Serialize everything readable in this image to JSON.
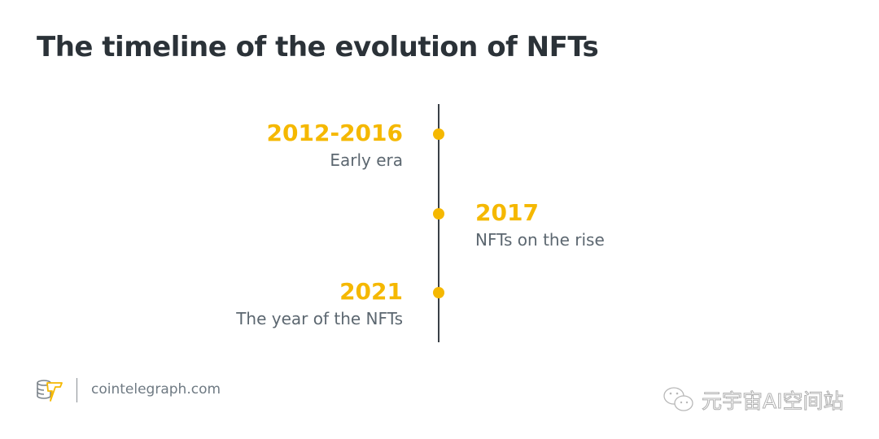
{
  "title": "The timeline of the evolution of NFTs",
  "accent_color": "#f5b800",
  "events": [
    {
      "year": "2012-2016",
      "label": "Early era",
      "side": "left"
    },
    {
      "year": "2017",
      "label": "NFTs on the rise",
      "side": "right"
    },
    {
      "year": "2021",
      "label": "The year of the NFTs",
      "side": "left"
    }
  ],
  "footer": {
    "logo_icon": "cointelegraph-logo-icon",
    "site": "cointelegraph.com"
  },
  "watermark": {
    "icon": "wechat-icon",
    "text": "元宇宙AI空间站"
  }
}
